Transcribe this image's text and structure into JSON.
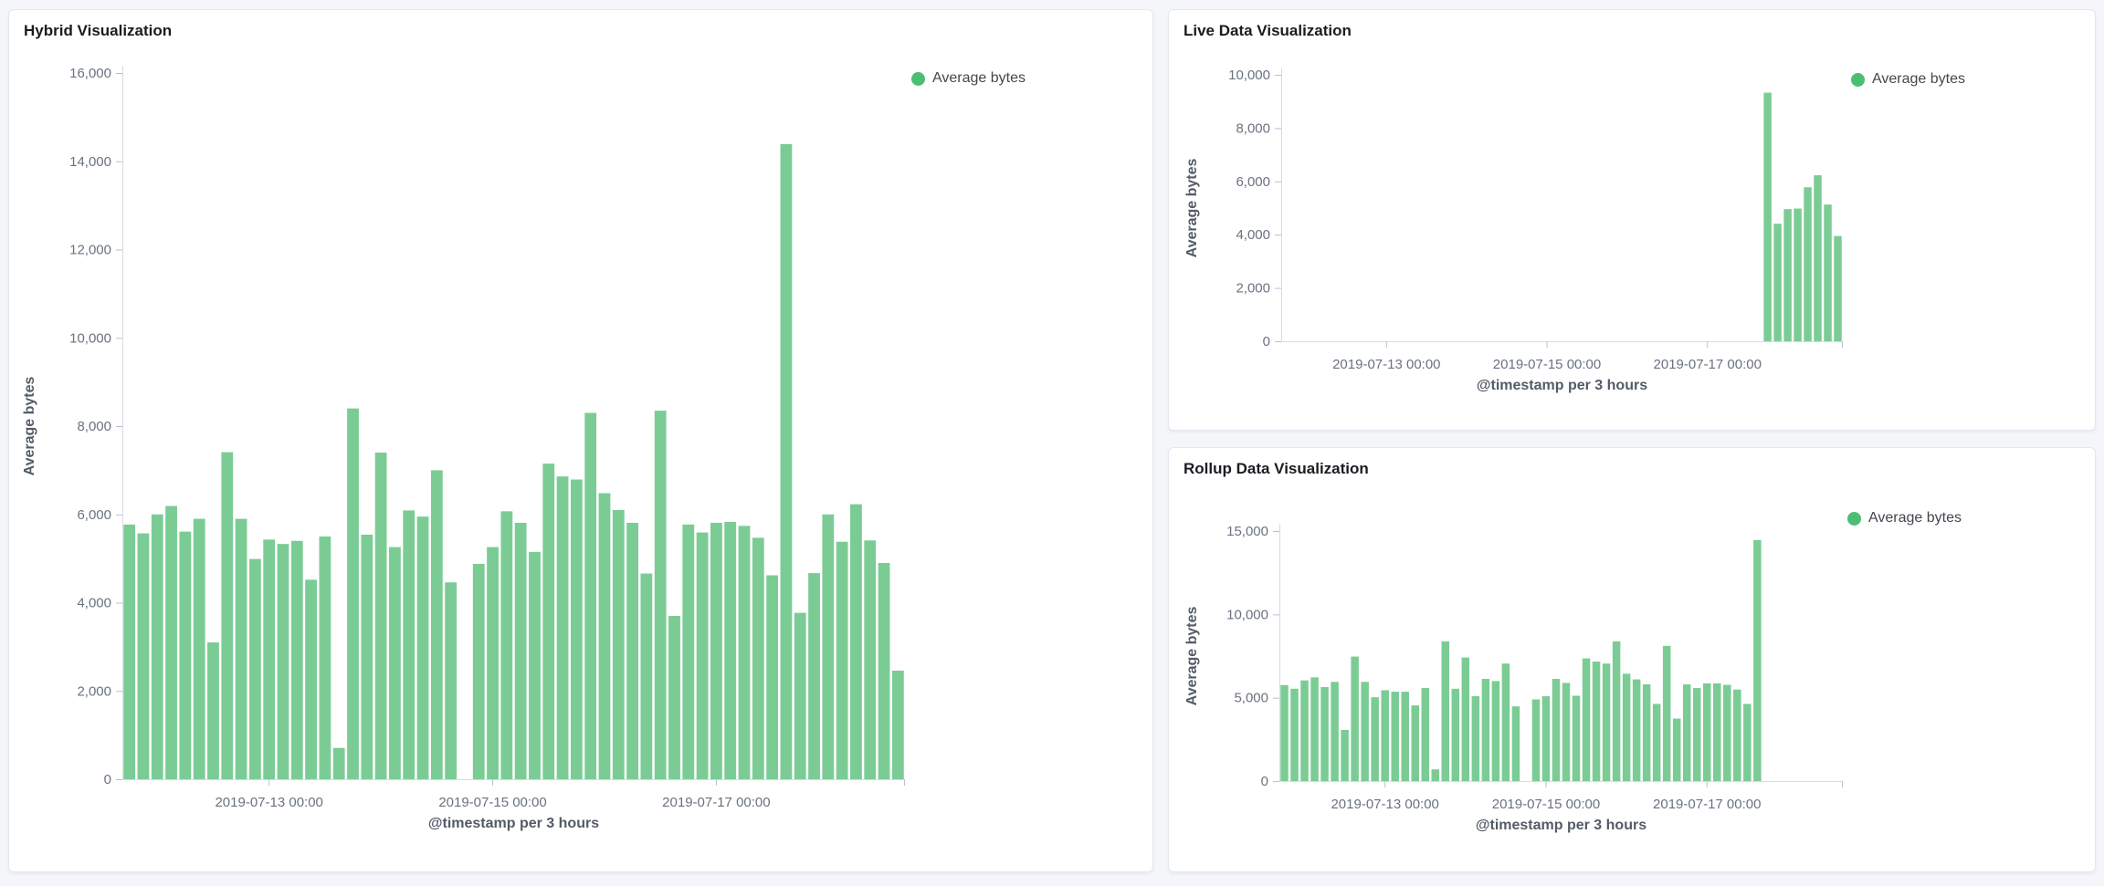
{
  "colors": {
    "bar": "#7bcc94",
    "legend_dot": "#4cbe74",
    "page_background": "#f4f6fa",
    "panel_border": "#e3e8f0",
    "axis_line": "#d7dce5",
    "tick_mark": "#b8c1cd",
    "tick_text": "#6a7280",
    "title_text": "#1a1c21",
    "axis_title_text": "#535b66"
  },
  "chart_data": [
    {
      "id": "hybrid",
      "type": "bar",
      "title": "Hybrid Visualization",
      "legend": "Average bytes",
      "ylabel": "Average bytes",
      "xlabel": "@timestamp per 3 hours",
      "ylim": [
        0,
        16000
      ],
      "y_ticks": [
        0,
        2000,
        4000,
        6000,
        8000,
        10000,
        12000,
        14000,
        16000
      ],
      "grid": false,
      "legend_position": "top-right",
      "total_slots": 56,
      "start_slot": 0,
      "x_ticks": [
        {
          "slot": 10,
          "label": "2019-07-13 00:00"
        },
        {
          "slot": 26,
          "label": "2019-07-15 00:00"
        },
        {
          "slot": 42,
          "label": "2019-07-17 00:00"
        }
      ],
      "values": [
        5770,
        5570,
        6000,
        6190,
        5610,
        5900,
        3100,
        7410,
        5900,
        4990,
        5430,
        5330,
        5400,
        4520,
        5500,
        710,
        8400,
        5540,
        7400,
        5260,
        6090,
        5950,
        7000,
        4460,
        null,
        4880,
        5260,
        6070,
        5810,
        5150,
        7150,
        6860,
        6790,
        8300,
        6480,
        6100,
        5810,
        4660,
        8350,
        3700,
        5770,
        5590,
        5810,
        5830,
        5740,
        5470,
        4620,
        14390,
        3770,
        4670,
        6000,
        5380,
        6230,
        5410,
        4900,
        2460
      ]
    },
    {
      "id": "live",
      "type": "bar",
      "title": "Live Data Visualization",
      "legend": "Average bytes",
      "ylabel": "Average bytes",
      "xlabel": "@timestamp per 3 hours",
      "ylim": [
        0,
        10000
      ],
      "y_ticks": [
        0,
        2000,
        4000,
        6000,
        8000,
        10000
      ],
      "grid": false,
      "legend_position": "top-right",
      "total_slots": 56,
      "start_slot": 48,
      "x_ticks": [
        {
          "slot": 10,
          "label": "2019-07-13 00:00"
        },
        {
          "slot": 26,
          "label": "2019-07-15 00:00"
        },
        {
          "slot": 42,
          "label": "2019-07-17 00:00"
        }
      ],
      "values": [
        9330,
        4410,
        4960,
        4980,
        5780,
        6230,
        5130,
        3950
      ]
    },
    {
      "id": "rollup",
      "type": "bar",
      "title": "Rollup Data Visualization",
      "legend": "Average bytes",
      "ylabel": "Average bytes",
      "xlabel": "@timestamp per 3 hours",
      "ylim": [
        0,
        15000
      ],
      "y_ticks": [
        0,
        5000,
        10000,
        15000
      ],
      "grid": false,
      "legend_position": "top-right",
      "total_slots": 56,
      "start_slot": 0,
      "x_ticks": [
        {
          "slot": 10,
          "label": "2019-07-13 00:00"
        },
        {
          "slot": 26,
          "label": "2019-07-15 00:00"
        },
        {
          "slot": 42,
          "label": "2019-07-17 00:00"
        }
      ],
      "values": [
        5760,
        5540,
        6040,
        6220,
        5640,
        5950,
        3070,
        7470,
        5950,
        5030,
        5450,
        5360,
        5360,
        4540,
        5580,
        700,
        8380,
        5540,
        7410,
        5090,
        6130,
        6000,
        7050,
        4480,
        null,
        4900,
        5090,
        6130,
        5890,
        5120,
        7360,
        7170,
        7050,
        8380,
        6440,
        6100,
        5800,
        4630,
        8110,
        3750,
        5800,
        5580,
        5860,
        5860,
        5770,
        5490,
        4630,
        14460
      ]
    }
  ]
}
